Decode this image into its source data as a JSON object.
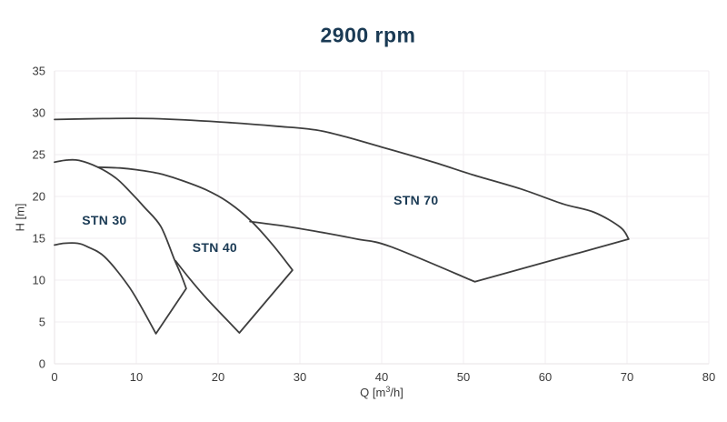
{
  "title": "2900 rpm",
  "colors": {
    "background": "#ffffff",
    "title_text": "#1a3a54",
    "region_label_text": "#1a3a54",
    "curve_stroke": "#3e3e3e",
    "grid_line": "#f2eef0",
    "axis_frame_line": "#e7e3e5",
    "axis_text": "#3a3a3a"
  },
  "chart_data": {
    "type": "area",
    "title": "2900 rpm",
    "subtitle": "",
    "xlabel": "Q [m³/h]",
    "xlabel_parts": {
      "pre": "Q [m",
      "sup": "3",
      "post": "/h]"
    },
    "ylabel": "H [m]",
    "xlim": [
      0,
      80
    ],
    "ylim": [
      0,
      35
    ],
    "xticks": [
      0,
      10,
      20,
      30,
      40,
      50,
      60,
      70,
      80
    ],
    "yticks": [
      0,
      5,
      10,
      15,
      20,
      25,
      30,
      35
    ],
    "grid": true,
    "legend_position": "none",
    "series_note": "Each series is a pump model operating envelope: 'upper' = max impeller H-Q curve, 'max_flow' = straight right-edge line, 'lower' = min impeller H-Q curve (drawn open, no left edge). Points are [Q m3/h, H m].",
    "series": [
      {
        "name": "STN 30",
        "label_pos": {
          "q": 6.1,
          "h": 17.2
        },
        "upper": [
          [
            0,
            24.1
          ],
          [
            1.5,
            24.35
          ],
          [
            3,
            24.3
          ],
          [
            5.3,
            23.5
          ],
          [
            7.5,
            22.2
          ],
          [
            9.2,
            20.6
          ],
          [
            11,
            18.7
          ],
          [
            13,
            16.4
          ],
          [
            14.6,
            12.6
          ],
          [
            15.4,
            10.8
          ],
          [
            16.1,
            9.0
          ]
        ],
        "max_flow": [
          [
            16.1,
            9.0
          ],
          [
            12.4,
            3.6
          ]
        ],
        "lower": [
          [
            12.4,
            3.6
          ],
          [
            10.6,
            6.8
          ],
          [
            8.9,
            9.5
          ],
          [
            6.1,
            12.8
          ],
          [
            4,
            14.0
          ],
          [
            2.8,
            14.4
          ],
          [
            1.2,
            14.4
          ],
          [
            0,
            14.2
          ]
        ]
      },
      {
        "name": "STN 40",
        "label_pos": {
          "q": 19.6,
          "h": 13.9
        },
        "upper": [
          [
            5.3,
            23.5
          ],
          [
            8,
            23.4
          ],
          [
            10,
            23.2
          ],
          [
            13,
            22.7
          ],
          [
            15.6,
            21.9
          ],
          [
            18.5,
            20.8
          ],
          [
            21.1,
            19.4
          ],
          [
            23.9,
            17.2
          ],
          [
            26.7,
            14.2
          ],
          [
            29.1,
            11.2
          ]
        ],
        "max_flow": [
          [
            29.1,
            11.2
          ],
          [
            22.6,
            3.7
          ]
        ],
        "lower": [
          [
            22.6,
            3.7
          ],
          [
            18.7,
            7.7
          ],
          [
            16.5,
            10.2
          ],
          [
            14.8,
            12.3
          ]
        ]
      },
      {
        "name": "STN 70",
        "label_pos": {
          "q": 44.2,
          "h": 19.6
        },
        "upper": [
          [
            0,
            29.2
          ],
          [
            6,
            29.3
          ],
          [
            12,
            29.3
          ],
          [
            20.2,
            28.9
          ],
          [
            27,
            28.4
          ],
          [
            32.8,
            27.8
          ],
          [
            40,
            25.9
          ],
          [
            46,
            24.2
          ],
          [
            51.1,
            22.6
          ],
          [
            57,
            20.9
          ],
          [
            62.2,
            19.1
          ],
          [
            66,
            18.1
          ],
          [
            69.2,
            16.3
          ],
          [
            70.2,
            14.9
          ]
        ],
        "max_flow": [
          [
            70.2,
            14.9
          ],
          [
            51.4,
            9.8
          ]
        ],
        "lower": [
          [
            51.4,
            9.8
          ],
          [
            41.1,
            14.0
          ],
          [
            37,
            14.9
          ],
          [
            33.3,
            15.6
          ],
          [
            28.5,
            16.4
          ],
          [
            23.9,
            17.0
          ]
        ]
      }
    ]
  }
}
